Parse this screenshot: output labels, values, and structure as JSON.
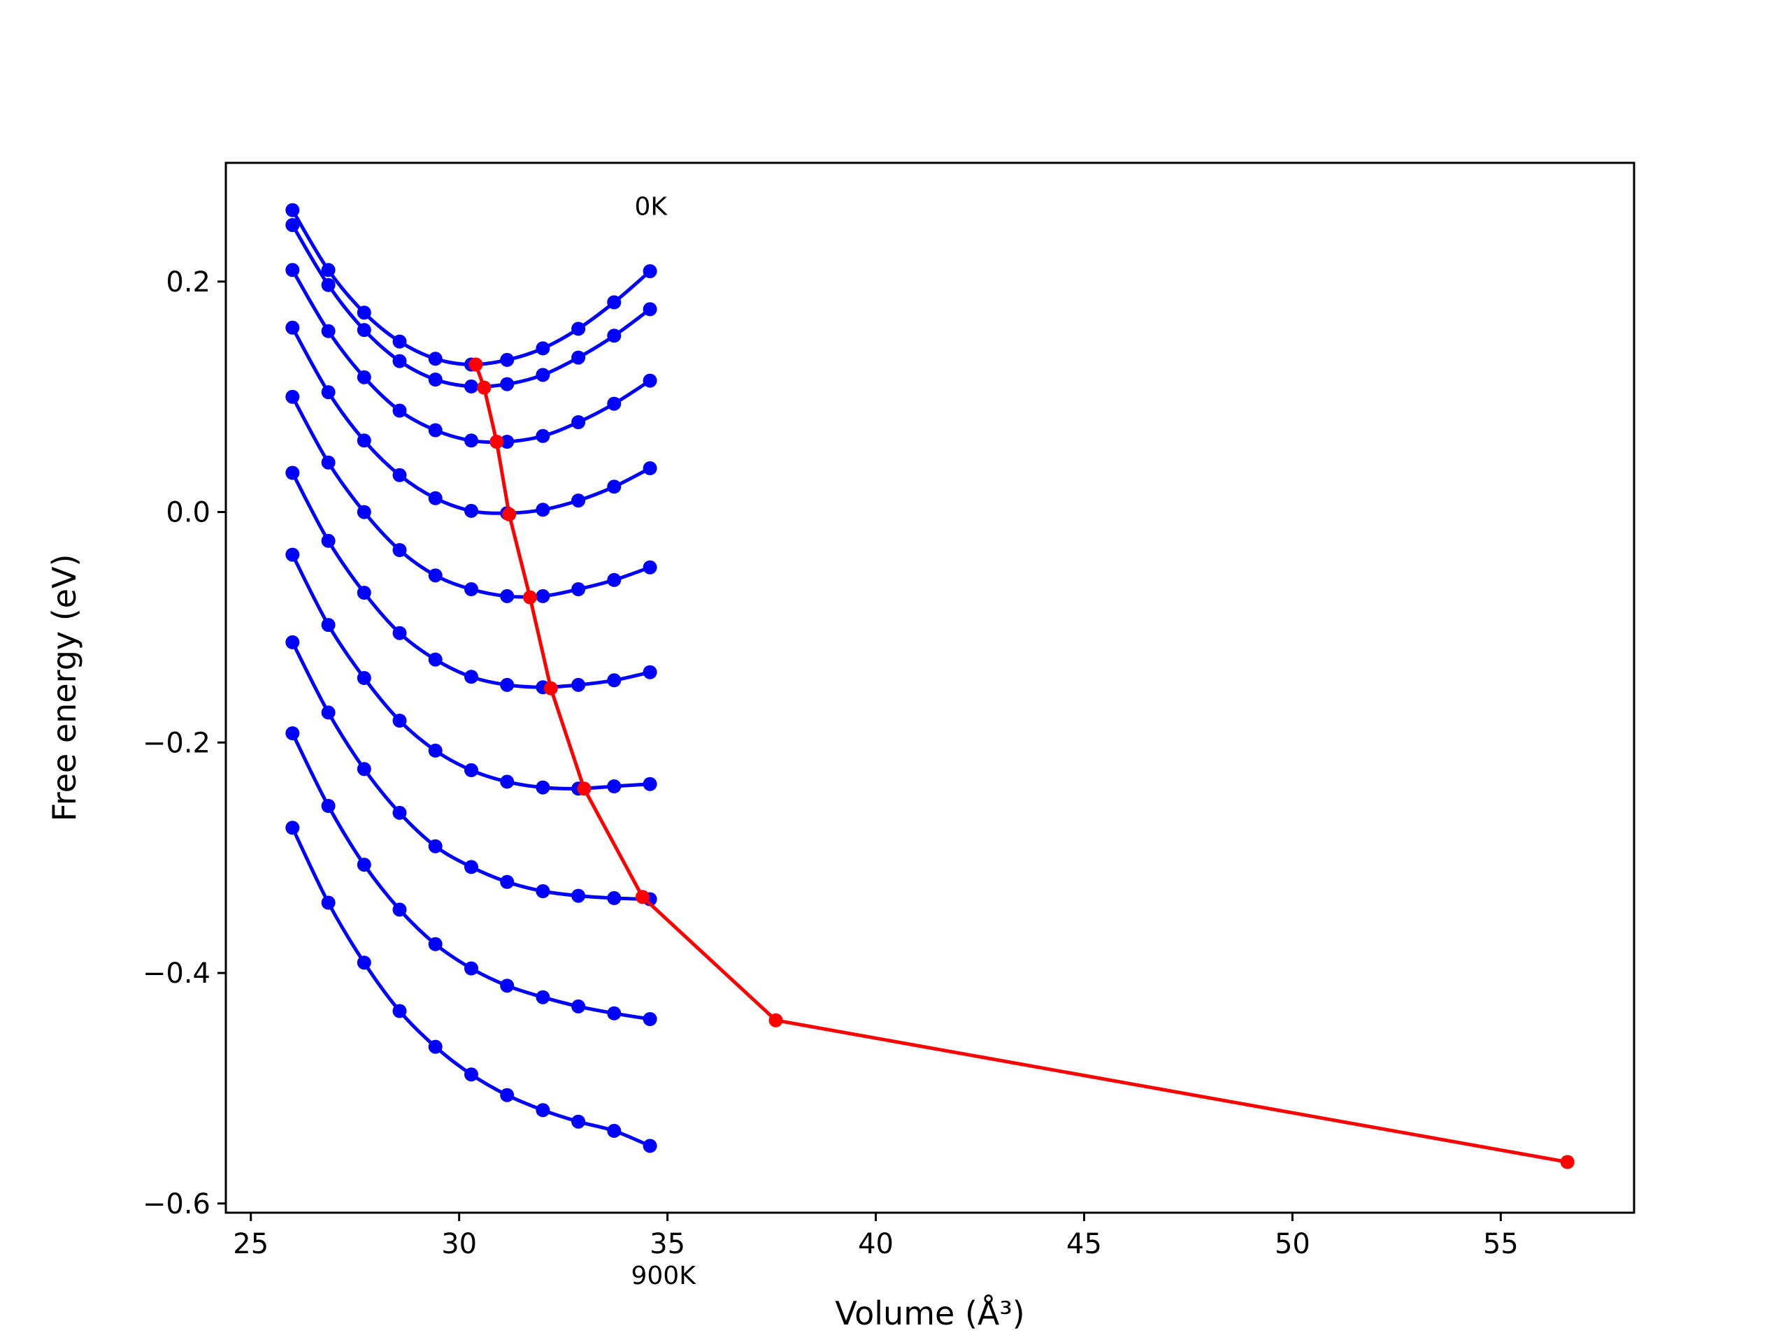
{
  "chart_data": {
    "type": "line",
    "xlabel": "Volume (Å³)",
    "ylabel": "Free energy (eV)",
    "xlim": [
      24.4,
      58.2
    ],
    "ylim": [
      -0.608,
      0.303
    ],
    "xticks": [
      25,
      30,
      35,
      40,
      45,
      50,
      55
    ],
    "yticks": [
      -0.6,
      -0.4,
      -0.2,
      0.0,
      0.2
    ],
    "xtick_labels": [
      "25",
      "30",
      "35",
      "40",
      "45",
      "50",
      "55"
    ],
    "ytick_labels": [
      "−0.6",
      "−0.4",
      "−0.2",
      "0.0",
      "0.2"
    ],
    "grid": false,
    "annotations": [
      {
        "text": "0K",
        "x": 34.6,
        "y": 0.265
      },
      {
        "text": "900K",
        "x": 34.9,
        "y": -0.6625
      }
    ],
    "x": [
      26.0,
      26.86,
      27.72,
      28.57,
      29.43,
      30.29,
      31.15,
      32.01,
      32.86,
      33.72,
      34.58
    ],
    "curves": {
      "color": "#0000ff",
      "series": [
        {
          "values": [
            0.262,
            0.21,
            0.173,
            0.148,
            0.133,
            0.128,
            0.132,
            0.142,
            0.159,
            0.182,
            0.209
          ]
        },
        {
          "values": [
            0.249,
            0.197,
            0.158,
            0.131,
            0.115,
            0.109,
            0.111,
            0.119,
            0.134,
            0.153,
            0.176
          ]
        },
        {
          "values": [
            0.21,
            0.157,
            0.117,
            0.088,
            0.071,
            0.062,
            0.061,
            0.066,
            0.078,
            0.094,
            0.114
          ]
        },
        {
          "values": [
            0.16,
            0.104,
            0.062,
            0.032,
            0.012,
            0.001,
            -0.001,
            0.002,
            0.01,
            0.022,
            0.038
          ]
        },
        {
          "values": [
            0.1,
            0.043,
            0.0,
            -0.033,
            -0.055,
            -0.067,
            -0.073,
            -0.073,
            -0.067,
            -0.059,
            -0.048
          ]
        },
        {
          "values": [
            0.034,
            -0.025,
            -0.07,
            -0.105,
            -0.128,
            -0.143,
            -0.15,
            -0.152,
            -0.15,
            -0.146,
            -0.139
          ]
        },
        {
          "values": [
            -0.037,
            -0.098,
            -0.144,
            -0.181,
            -0.207,
            -0.224,
            -0.234,
            -0.239,
            -0.24,
            -0.238,
            -0.236
          ]
        },
        {
          "values": [
            -0.113,
            -0.174,
            -0.223,
            -0.261,
            -0.29,
            -0.308,
            -0.321,
            -0.329,
            -0.333,
            -0.335,
            -0.336
          ]
        },
        {
          "values": [
            -0.192,
            -0.255,
            -0.306,
            -0.345,
            -0.375,
            -0.396,
            -0.411,
            -0.421,
            -0.429,
            -0.435,
            -0.44
          ]
        },
        {
          "values": [
            -0.274,
            -0.339,
            -0.391,
            -0.433,
            -0.464,
            -0.488,
            -0.506,
            -0.519,
            -0.529,
            -0.537,
            -0.55
          ]
        }
      ]
    },
    "equilibrium": {
      "color": "#ff0000",
      "x": [
        30.4,
        30.6,
        30.9,
        31.2,
        31.7,
        32.2,
        33.0,
        34.4,
        37.6,
        56.6
      ],
      "y": [
        0.128,
        0.108,
        0.061,
        -0.002,
        -0.074,
        -0.153,
        -0.24,
        -0.334,
        -0.441,
        -0.564
      ]
    }
  }
}
